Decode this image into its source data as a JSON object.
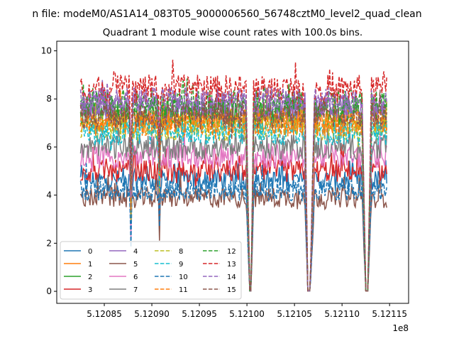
{
  "chart_data": {
    "type": "line",
    "suptitle": "n file: modeM0/AS1A14_083T05_9000006560_56748cztM0_level2_quad_clean",
    "title": "Quadrant 1 module wise count rates with 100.0s bins.",
    "xlabel": "",
    "ylabel": "",
    "x_offset_label": "1e8",
    "xlim": [
      5.1208,
      5.12117
    ],
    "ylim": [
      -0.5,
      10.4
    ],
    "x_ticks": [
      5.12085,
      5.1209,
      5.12095,
      5.121,
      5.12105,
      5.1211,
      5.12115
    ],
    "x_tick_labels": [
      "5.12085",
      "5.12090",
      "5.12095",
      "5.12100",
      "5.12105",
      "5.12110",
      "5.12115"
    ],
    "y_ticks": [
      0,
      2,
      4,
      6,
      8,
      10
    ],
    "y_tick_labels": [
      "0",
      "2",
      "4",
      "6",
      "8",
      "10"
    ],
    "grid": false,
    "legend_position": "lower-left",
    "legend_columns": 4,
    "x_range": [
      5.120825,
      5.121147
    ],
    "x_step": 1e-06,
    "gaps": [
      {
        "start": 5.120999,
        "min": 5.121003,
        "end": 5.121007
      },
      {
        "start": 5.121061,
        "min": 5.121064,
        "end": 5.121071
      },
      {
        "start": 5.121121,
        "min": 5.121125,
        "end": 5.121131
      }
    ],
    "dips": [
      {
        "x": 5.120878,
        "depth": 3.0
      },
      {
        "x": 5.120908,
        "depth": 2.3
      }
    ],
    "series": [
      {
        "name": "0",
        "color": "#1f77b4",
        "dash": "solid",
        "level": 4.6
      },
      {
        "name": "1",
        "color": "#ff7f0e",
        "dash": "solid",
        "level": 7.1
      },
      {
        "name": "2",
        "color": "#2ca02c",
        "dash": "solid",
        "level": 7.4
      },
      {
        "name": "3",
        "color": "#d62728",
        "dash": "solid",
        "level": 5.0
      },
      {
        "name": "4",
        "color": "#9467bd",
        "dash": "solid",
        "level": 7.6
      },
      {
        "name": "5",
        "color": "#8c564b",
        "dash": "solid",
        "level": 3.9
      },
      {
        "name": "6",
        "color": "#e377c2",
        "dash": "solid",
        "level": 5.6
      },
      {
        "name": "7",
        "color": "#7f7f7f",
        "dash": "solid",
        "level": 6.0
      },
      {
        "name": "8",
        "color": "#bcbd22",
        "dash": "dashed",
        "level": 6.8
      },
      {
        "name": "9",
        "color": "#17becf",
        "dash": "dashed",
        "level": 6.6
      },
      {
        "name": "10",
        "color": "#1f77b4",
        "dash": "dashed",
        "level": 4.2
      },
      {
        "name": "11",
        "color": "#ff7f0e",
        "dash": "dashed",
        "level": 7.0
      },
      {
        "name": "12",
        "color": "#2ca02c",
        "dash": "dashed",
        "level": 7.8
      },
      {
        "name": "13",
        "color": "#d62728",
        "dash": "dashed",
        "level": 8.4
      },
      {
        "name": "14",
        "color": "#9467bd",
        "dash": "dashed",
        "level": 7.9
      },
      {
        "name": "15",
        "color": "#8c564b",
        "dash": "dashed",
        "level": 7.3
      }
    ]
  }
}
